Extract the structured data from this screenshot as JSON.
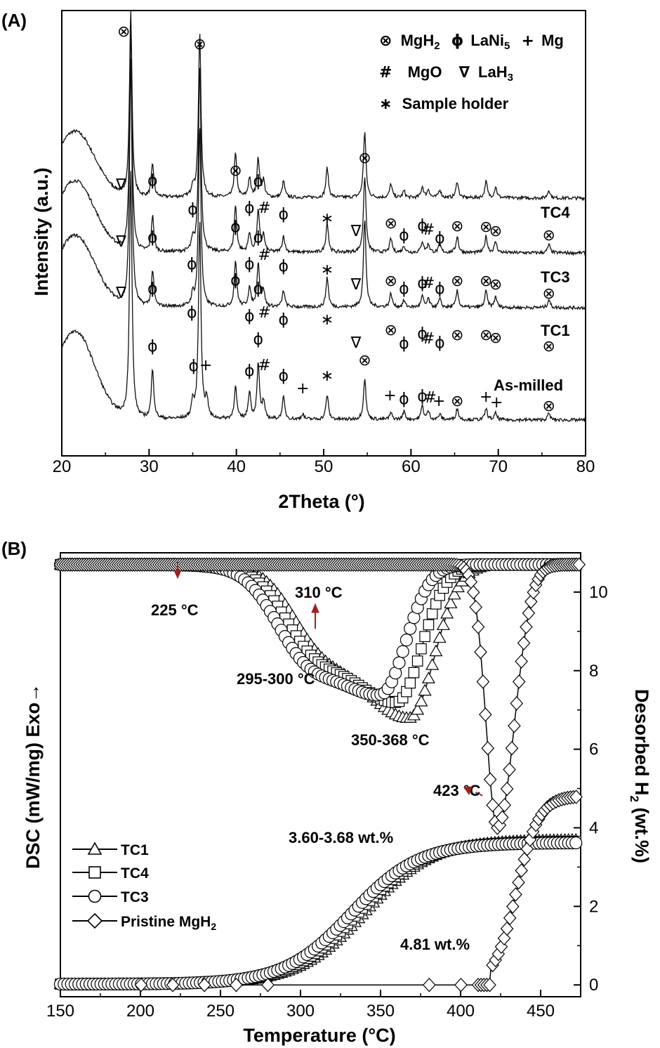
{
  "panel_a": {
    "label": "(A)",
    "legend_lines": [
      [
        {
          "sym": "⊗",
          "text": "MgH",
          "sub": "2"
        },
        {
          "sym": "ϕ",
          "text": "LaNi",
          "sub": "5"
        },
        {
          "sym": "+",
          "text": "Mg",
          "sub": ""
        }
      ],
      [
        {
          "sym": "#",
          "text": "MgO",
          "sub": ""
        },
        {
          "sym": "∇",
          "text": "LaH",
          "sub": "3"
        }
      ],
      [
        {
          "sym": "∗",
          "text": "Sample holder",
          "sub": ""
        }
      ]
    ],
    "trace_labels": [
      "TC4",
      "TC3",
      "TC1",
      "As-milled"
    ]
  },
  "panel_b": {
    "label": "(B)",
    "annotations": [
      "225 °C",
      "310 °C",
      "295-300 °C",
      "350-368 °C",
      "423 °C",
      "3.60-3.68 wt.%",
      "4.81 wt.%"
    ],
    "legend_entries": [
      "TC1",
      "TC4",
      "TC3",
      "Pristine MgH"
    ],
    "legend_subscript": "2"
  },
  "chart_data": [
    {
      "type": "line",
      "xlabel": "2Theta (°)",
      "ylabel": "Intensity (a.u.)",
      "xlim": [
        20,
        80
      ],
      "x_ticks": [
        20,
        30,
        40,
        50,
        60,
        70,
        80
      ],
      "grid": false,
      "series": [
        {
          "name": "TC4",
          "offset": 4.05,
          "hump": 1.2,
          "peaks": [
            [
              27.9,
              3.4
            ],
            [
              30.4,
              0.6
            ],
            [
              35.0,
              0.2
            ],
            [
              35.8,
              3.0
            ],
            [
              39.9,
              0.8
            ],
            [
              41.5,
              0.35
            ],
            [
              42.5,
              0.7
            ],
            [
              43.1,
              0.3
            ],
            [
              45.4,
              0.3
            ],
            [
              50.4,
              0.55
            ],
            [
              54.7,
              1.2
            ],
            [
              57.7,
              0.25
            ],
            [
              59.2,
              0.12
            ],
            [
              61.3,
              0.2
            ],
            [
              62.0,
              0.15
            ],
            [
              63.3,
              0.15
            ],
            [
              65.3,
              0.3
            ],
            [
              68.6,
              0.3
            ],
            [
              69.7,
              0.2
            ],
            [
              75.8,
              0.15
            ]
          ]
        },
        {
          "name": "TC3",
          "offset": 3.05,
          "hump": 1.3,
          "peaks": [
            [
              27.9,
              4.1
            ],
            [
              30.4,
              0.65
            ],
            [
              35.0,
              0.2
            ],
            [
              35.8,
              3.4
            ],
            [
              39.9,
              0.85
            ],
            [
              41.5,
              0.35
            ],
            [
              42.5,
              0.75
            ],
            [
              43.1,
              0.3
            ],
            [
              45.4,
              0.3
            ],
            [
              50.4,
              0.55
            ],
            [
              54.7,
              1.4
            ],
            [
              57.7,
              0.25
            ],
            [
              59.2,
              0.12
            ],
            [
              61.3,
              0.2
            ],
            [
              62.0,
              0.15
            ],
            [
              63.3,
              0.15
            ],
            [
              65.3,
              0.3
            ],
            [
              68.6,
              0.3
            ],
            [
              69.7,
              0.2
            ],
            [
              75.8,
              0.15
            ]
          ]
        },
        {
          "name": "TC1",
          "offset": 2.05,
          "hump": 1.3,
          "peaks": [
            [
              27.9,
              4.5
            ],
            [
              30.4,
              0.65
            ],
            [
              35.0,
              0.2
            ],
            [
              35.8,
              3.3
            ],
            [
              39.9,
              0.85
            ],
            [
              41.5,
              0.35
            ],
            [
              42.5,
              0.8
            ],
            [
              43.1,
              0.3
            ],
            [
              45.4,
              0.3
            ],
            [
              50.4,
              0.55
            ],
            [
              54.7,
              1.6
            ],
            [
              57.7,
              0.25
            ],
            [
              59.2,
              0.12
            ],
            [
              61.3,
              0.2
            ],
            [
              62.0,
              0.15
            ],
            [
              63.3,
              0.15
            ],
            [
              65.3,
              0.3
            ],
            [
              68.6,
              0.3
            ],
            [
              69.7,
              0.2
            ],
            [
              75.8,
              0.15
            ]
          ]
        },
        {
          "name": "As-milled",
          "offset": 0.0,
          "hump": 1.6,
          "peaks": [
            [
              27.9,
              4.5
            ],
            [
              30.4,
              0.9
            ],
            [
              35.0,
              0.3
            ],
            [
              35.8,
              3.6
            ],
            [
              36.6,
              0.35
            ],
            [
              39.9,
              0.6
            ],
            [
              41.5,
              0.5
            ],
            [
              42.5,
              1.0
            ],
            [
              43.1,
              0.3
            ],
            [
              45.4,
              0.4
            ],
            [
              47.6,
              0.1
            ],
            [
              50.4,
              0.45
            ],
            [
              54.7,
              0.75
            ],
            [
              57.7,
              0.12
            ],
            [
              59.2,
              0.15
            ],
            [
              61.3,
              0.25
            ],
            [
              62.0,
              0.15
            ],
            [
              63.3,
              0.1
            ],
            [
              65.3,
              0.2
            ],
            [
              68.6,
              0.2
            ],
            [
              69.7,
              0.12
            ],
            [
              75.8,
              0.12
            ]
          ]
        }
      ]
    },
    {
      "type": "line",
      "xlabel": "Temperature (°C)",
      "ylabel": "DSC (mW/mg) Exo→",
      "y2label": "Desorbed H2 (wt.%)",
      "xlim": [
        150,
        475
      ],
      "y2lim": [
        -0.3,
        11
      ],
      "x_ticks": [
        150,
        200,
        250,
        300,
        350,
        400,
        450
      ],
      "y2_ticks": [
        0,
        2,
        4,
        6,
        8,
        10
      ],
      "grid": false,
      "dsc_series": [
        {
          "name": "TC1",
          "marker": "triangle",
          "onset": 225,
          "shoulder": 310,
          "peak": 368,
          "min_y2": 6.8
        },
        {
          "name": "TC4",
          "marker": "square",
          "onset": 225,
          "shoulder": 305,
          "peak": 360,
          "min_y2": 7.2
        },
        {
          "name": "TC3",
          "marker": "circle",
          "onset": 225,
          "shoulder": 300,
          "peak": 350,
          "min_y2": 7.4
        },
        {
          "name": "Pristine MgH2",
          "marker": "diamond",
          "onset": 410,
          "peak": 423,
          "min_y2": 4.0
        }
      ],
      "tpd_series": [
        {
          "name": "TC1",
          "marker": "triangle",
          "final_wt": 3.68,
          "midpoint": 340
        },
        {
          "name": "TC4",
          "marker": "square",
          "final_wt": 3.64,
          "midpoint": 336
        },
        {
          "name": "TC3",
          "marker": "circle",
          "final_wt": 3.6,
          "midpoint": 332
        },
        {
          "name": "Pristine MgH2",
          "marker": "diamond",
          "final_wt": 4.81,
          "onset": 419
        }
      ]
    }
  ]
}
